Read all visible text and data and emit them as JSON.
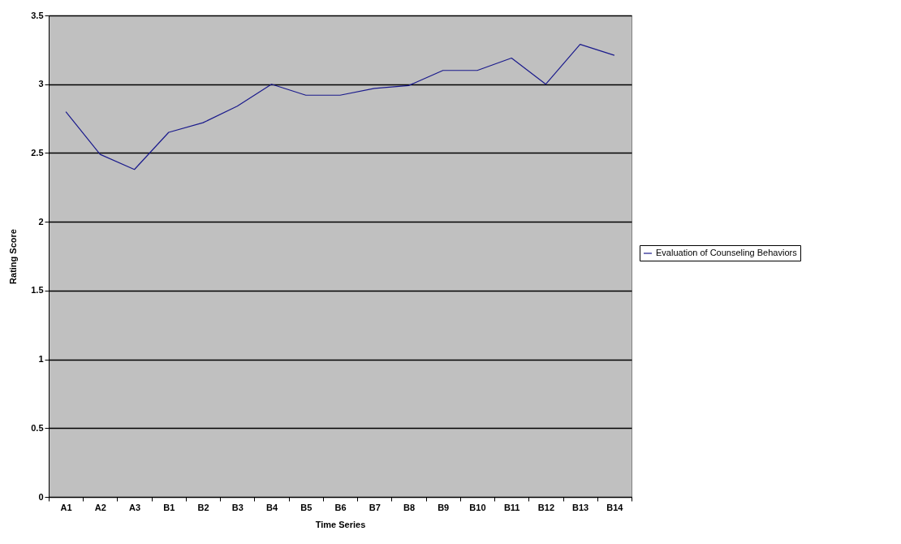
{
  "chart_data": {
    "type": "line",
    "xlabel": "Time Series",
    "ylabel": "Rating Score",
    "categories": [
      "A1",
      "A2",
      "A3",
      "B1",
      "B2",
      "B3",
      "B4",
      "B5",
      "B6",
      "B7",
      "B8",
      "B9",
      "B10",
      "B11",
      "B12",
      "B13",
      "B14"
    ],
    "series": [
      {
        "name": "Evaluation of Counseling Behaviors",
        "color": "#1a1a8c",
        "values": [
          2.8,
          2.49,
          2.38,
          2.65,
          2.72,
          2.84,
          3.0,
          2.92,
          2.92,
          2.97,
          2.99,
          3.1,
          3.1,
          3.19,
          3.0,
          3.29,
          3.21
        ]
      }
    ],
    "ylim": [
      0,
      3.5
    ],
    "yticks": [
      0,
      0.5,
      1,
      1.5,
      2,
      2.5,
      3,
      3.5
    ],
    "grid": "y",
    "legend": "right",
    "marker": "none",
    "line_style": "solid"
  }
}
